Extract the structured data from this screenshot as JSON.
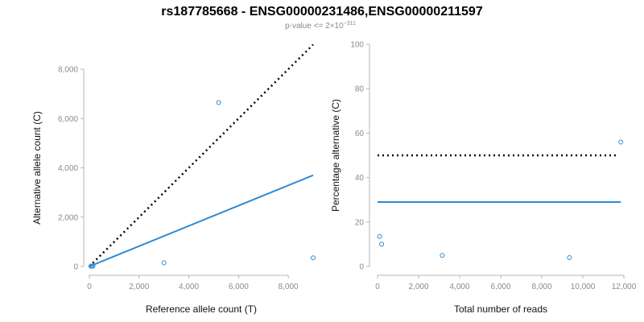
{
  "header": {
    "title": "rs187785668 - ENSG00000231486,ENSG00000211597",
    "subtitle_prefix": "p-value <= 2",
    "subtitle_times": "×",
    "subtitle_base": "10",
    "subtitle_exp": "−311"
  },
  "colors": {
    "points": "#2b8ad6",
    "fit_line": "#2b8ad6",
    "reference_line": "#000000",
    "axis": "#b4b4b4",
    "tick_text": "#8a8a8a"
  },
  "chart_data": [
    {
      "type": "scatter",
      "xlabel": "Reference allele count (T)",
      "ylabel": "Alternative allele count (C)",
      "xlim": [
        0,
        9000
      ],
      "ylim": [
        0,
        8000
      ],
      "xticks": [
        0,
        2000,
        4000,
        6000,
        8000
      ],
      "xtick_labels": [
        "0",
        "2,000",
        "4,000",
        "6,000",
        "8,000"
      ],
      "yticks": [
        0,
        2000,
        4000,
        6000,
        8000
      ],
      "ytick_labels": [
        "0",
        "2,000",
        "4,000",
        "6,000",
        "8,000"
      ],
      "points": [
        {
          "x": 60,
          "y": 10
        },
        {
          "x": 100,
          "y": 15
        },
        {
          "x": 150,
          "y": 20
        },
        {
          "x": 3000,
          "y": 150
        },
        {
          "x": 5200,
          "y": 6650
        },
        {
          "x": 9000,
          "y": 350
        }
      ],
      "reference_line": {
        "x": [
          0,
          9000
        ],
        "y": [
          0,
          9000
        ],
        "style": "dotted"
      },
      "fit_line": {
        "x": [
          0,
          9000
        ],
        "y": [
          0,
          3700
        ],
        "style": "solid"
      },
      "grid": false
    },
    {
      "type": "scatter",
      "xlabel": "Total number of reads",
      "ylabel": "Percentage alternative (C)",
      "xlim": [
        0,
        12000
      ],
      "ylim": [
        0,
        100
      ],
      "xticks": [
        0,
        2000,
        4000,
        6000,
        8000,
        10000,
        12000
      ],
      "xtick_labels": [
        "0",
        "2,000",
        "4,000",
        "6,000",
        "8,000",
        "10,000",
        "12,000"
      ],
      "yticks": [
        0,
        20,
        40,
        60,
        80,
        100
      ],
      "ytick_labels": [
        "0",
        "20",
        "40",
        "60",
        "80",
        "100"
      ],
      "points": [
        {
          "x": 100,
          "y": 13.5
        },
        {
          "x": 200,
          "y": 10
        },
        {
          "x": 3150,
          "y": 5
        },
        {
          "x": 9350,
          "y": 4
        },
        {
          "x": 11850,
          "y": 56
        }
      ],
      "reference_line": {
        "x": [
          0,
          11700
        ],
        "y": [
          50,
          50
        ],
        "style": "dotted"
      },
      "fit_line": {
        "x": [
          0,
          11850
        ],
        "y": [
          29,
          29
        ],
        "style": "solid"
      },
      "grid": false
    }
  ]
}
